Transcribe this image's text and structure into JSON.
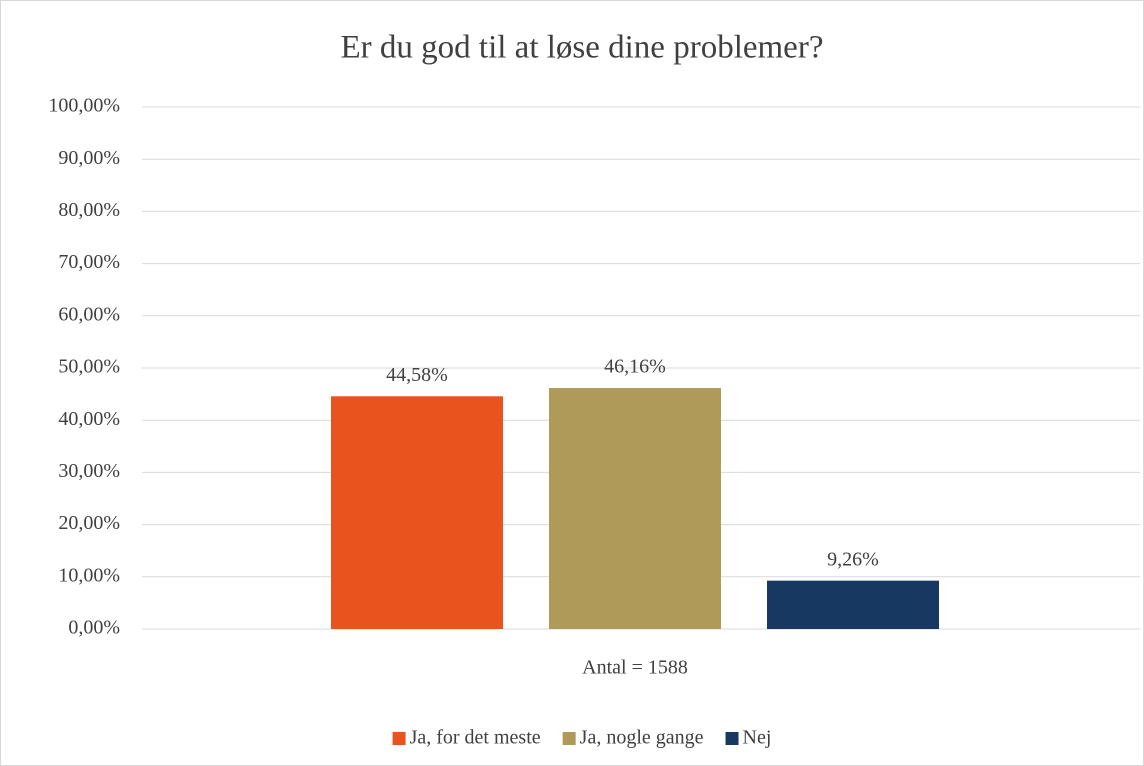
{
  "chart_data": {
    "type": "bar",
    "title": "Er du god til at løse dine problemer?",
    "categories": [
      "Antal = 1588"
    ],
    "series": [
      {
        "name": "Ja, for det meste",
        "color": "#e9541e",
        "values": [
          44.58
        ],
        "value_labels": [
          "44,58%"
        ]
      },
      {
        "name": "Ja, nogle gange",
        "color": "#b09a5a",
        "values": [
          46.16
        ],
        "value_labels": [
          "46,16%"
        ]
      },
      {
        "name": "Nej",
        "color": "#173861",
        "values": [
          9.26
        ],
        "value_labels": [
          "9,26%"
        ]
      }
    ],
    "ylim": [
      0,
      100
    ],
    "yticks": [
      {
        "value": 0,
        "label": "0,00%"
      },
      {
        "value": 10,
        "label": "10,00%"
      },
      {
        "value": 20,
        "label": "20,00%"
      },
      {
        "value": 30,
        "label": "30,00%"
      },
      {
        "value": 40,
        "label": "40,00%"
      },
      {
        "value": 50,
        "label": "50,00%"
      },
      {
        "value": 60,
        "label": "60,00%"
      },
      {
        "value": 70,
        "label": "70,00%"
      },
      {
        "value": 80,
        "label": "80,00%"
      },
      {
        "value": 90,
        "label": "90,00%"
      },
      {
        "value": 100,
        "label": "100,00%"
      }
    ],
    "grid": true,
    "legend": "bottom"
  }
}
